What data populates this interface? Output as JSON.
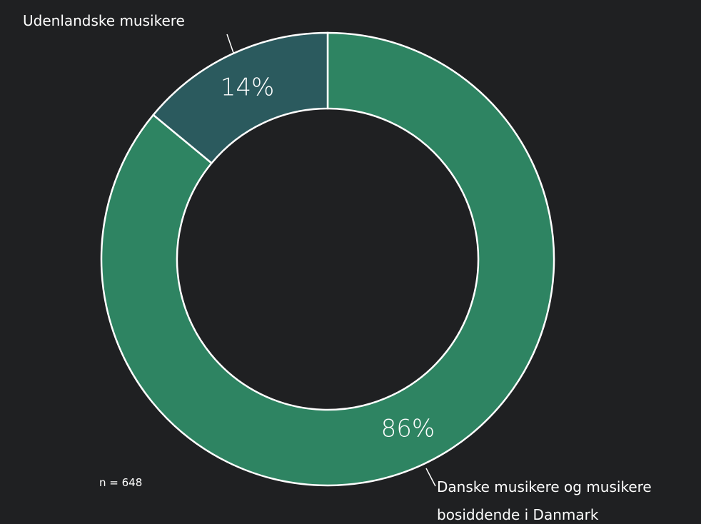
{
  "chart_data": {
    "type": "donut",
    "categories": [
      "Danske musikere og musikere bosiddende i Danmark",
      "Udenlandske musikere"
    ],
    "values": [
      86,
      14
    ],
    "value_labels": [
      "86%",
      "14%"
    ],
    "colors": [
      "#2e8462",
      "#2b5a5e"
    ],
    "note": "n = 648"
  }
}
